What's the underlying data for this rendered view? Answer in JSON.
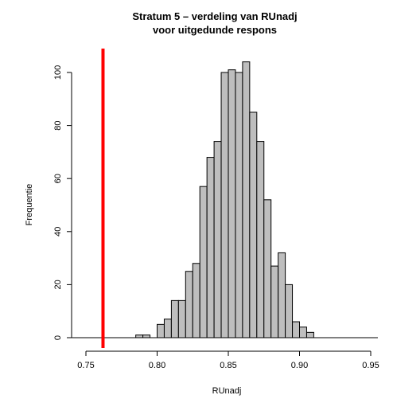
{
  "chart_data": {
    "type": "bar",
    "title": [
      "Stratum 5 – verdeling van RUnadj",
      "voor uitgedunde respons"
    ],
    "xlabel": "RUnadj",
    "ylabel": "Frequentie",
    "xlim": [
      0.74,
      0.955
    ],
    "ylim": [
      0,
      108
    ],
    "x_ticks": [
      0.75,
      0.8,
      0.85,
      0.9,
      0.95
    ],
    "x_tick_labels": [
      "0.75",
      "0.80",
      "0.85",
      "0.90",
      "0.95"
    ],
    "y_ticks": [
      0,
      20,
      40,
      60,
      80,
      100
    ],
    "y_tick_labels": [
      "0",
      "20",
      "40",
      "60",
      "80",
      "100"
    ],
    "bin_width": 0.005,
    "bins": [
      {
        "x0": 0.785,
        "x1": 0.79,
        "count": 1
      },
      {
        "x0": 0.79,
        "x1": 0.795,
        "count": 1
      },
      {
        "x0": 0.795,
        "x1": 0.8,
        "count": 0
      },
      {
        "x0": 0.8,
        "x1": 0.805,
        "count": 5
      },
      {
        "x0": 0.805,
        "x1": 0.81,
        "count": 7
      },
      {
        "x0": 0.81,
        "x1": 0.815,
        "count": 14
      },
      {
        "x0": 0.815,
        "x1": 0.82,
        "count": 14
      },
      {
        "x0": 0.82,
        "x1": 0.825,
        "count": 25
      },
      {
        "x0": 0.825,
        "x1": 0.83,
        "count": 28
      },
      {
        "x0": 0.83,
        "x1": 0.835,
        "count": 57
      },
      {
        "x0": 0.835,
        "x1": 0.84,
        "count": 68
      },
      {
        "x0": 0.84,
        "x1": 0.845,
        "count": 74
      },
      {
        "x0": 0.845,
        "x1": 0.85,
        "count": 100
      },
      {
        "x0": 0.85,
        "x1": 0.855,
        "count": 101
      },
      {
        "x0": 0.855,
        "x1": 0.86,
        "count": 100
      },
      {
        "x0": 0.86,
        "x1": 0.865,
        "count": 104
      },
      {
        "x0": 0.865,
        "x1": 0.87,
        "count": 85
      },
      {
        "x0": 0.87,
        "x1": 0.875,
        "count": 74
      },
      {
        "x0": 0.875,
        "x1": 0.88,
        "count": 52
      },
      {
        "x0": 0.88,
        "x1": 0.885,
        "count": 27
      },
      {
        "x0": 0.885,
        "x1": 0.89,
        "count": 32
      },
      {
        "x0": 0.89,
        "x1": 0.895,
        "count": 20
      },
      {
        "x0": 0.895,
        "x1": 0.9,
        "count": 6
      },
      {
        "x0": 0.9,
        "x1": 0.905,
        "count": 4
      },
      {
        "x0": 0.905,
        "x1": 0.91,
        "count": 2
      }
    ],
    "reference_line": {
      "x": 0.762,
      "color": "#ff0000"
    },
    "bar_color": "#bebebe",
    "grid": false,
    "legend": false
  }
}
